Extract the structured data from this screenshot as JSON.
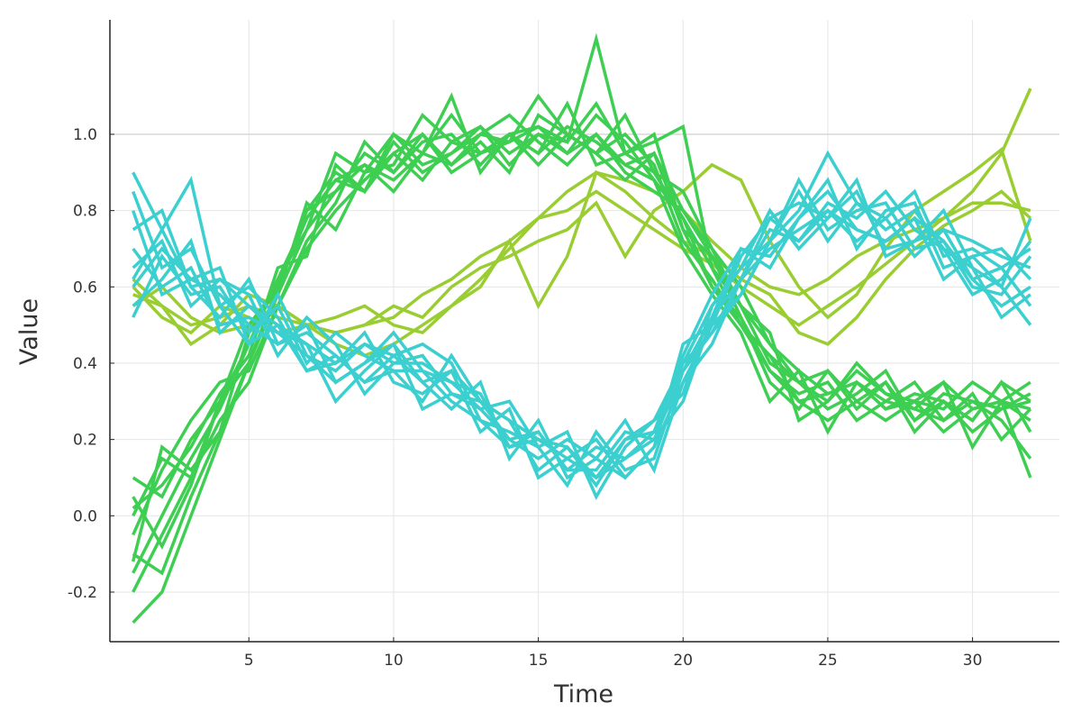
{
  "chart_data": {
    "type": "line",
    "title": "",
    "xlabel": "Time",
    "ylabel": "Value",
    "xlim": [
      0.2,
      33
    ],
    "ylim": [
      -0.33,
      1.3
    ],
    "x_ticks": [
      5,
      10,
      15,
      20,
      25,
      30
    ],
    "y_ticks": [
      -0.2,
      0.0,
      0.2,
      0.4,
      0.6,
      0.8,
      1.0
    ],
    "x_tick_labels": [
      "5",
      "10",
      "15",
      "20",
      "25",
      "30"
    ],
    "y_tick_labels": [
      "-0.2",
      "0.0",
      "0.2",
      "0.4",
      "0.6",
      "0.8",
      "1.0"
    ],
    "grid": true,
    "legend": "none",
    "x": [
      1,
      2,
      3,
      4,
      5,
      6,
      7,
      8,
      9,
      10,
      11,
      12,
      13,
      14,
      15,
      16,
      17,
      18,
      19,
      20,
      21,
      22,
      23,
      24,
      25,
      26,
      27,
      28,
      29,
      30,
      31,
      32
    ],
    "series": [
      {
        "color": "#9acd32",
        "values": [
          0.62,
          0.55,
          0.5,
          0.52,
          0.55,
          0.52,
          0.5,
          0.48,
          0.5,
          0.52,
          0.58,
          0.62,
          0.68,
          0.72,
          0.78,
          0.8,
          0.85,
          0.8,
          0.75,
          0.7,
          0.66,
          0.6,
          0.55,
          0.5,
          0.55,
          0.6,
          0.66,
          0.72,
          0.78,
          0.85,
          0.95,
          1.12
        ]
      },
      {
        "color": "#9acd32",
        "values": [
          0.58,
          0.55,
          0.45,
          0.5,
          0.58,
          0.55,
          0.5,
          0.45,
          0.42,
          0.45,
          0.5,
          0.55,
          0.62,
          0.7,
          0.78,
          0.85,
          0.9,
          0.88,
          0.85,
          0.8,
          0.72,
          0.65,
          0.6,
          0.58,
          0.62,
          0.68,
          0.72,
          0.75,
          0.78,
          0.82,
          0.82,
          0.8
        ]
      },
      {
        "color": "#9acd32",
        "values": [
          0.55,
          0.6,
          0.52,
          0.48,
          0.5,
          0.55,
          0.5,
          0.48,
          0.5,
          0.55,
          0.52,
          0.6,
          0.65,
          0.68,
          0.72,
          0.75,
          0.82,
          0.68,
          0.8,
          0.85,
          0.92,
          0.88,
          0.72,
          0.6,
          0.52,
          0.58,
          0.7,
          0.8,
          0.85,
          0.9,
          0.96,
          0.72
        ]
      },
      {
        "color": "#9acd32",
        "values": [
          0.6,
          0.52,
          0.48,
          0.55,
          0.52,
          0.48,
          0.5,
          0.52,
          0.55,
          0.5,
          0.48,
          0.55,
          0.6,
          0.72,
          0.55,
          0.68,
          0.9,
          0.85,
          0.78,
          0.72,
          0.68,
          0.62,
          0.58,
          0.48,
          0.45,
          0.52,
          0.62,
          0.7,
          0.76,
          0.8,
          0.85,
          0.78
        ]
      },
      {
        "color": "#3ecf52",
        "values": [
          -0.28,
          -0.2,
          0.0,
          0.2,
          0.4,
          0.6,
          0.8,
          0.9,
          0.85,
          1.0,
          0.95,
          1.05,
          0.95,
          1.0,
          1.02,
          0.98,
          1.25,
          0.95,
          0.9,
          0.85,
          0.7,
          0.55,
          0.4,
          0.35,
          0.3,
          0.38,
          0.32,
          0.3,
          0.35,
          0.28,
          0.3,
          0.1
        ]
      },
      {
        "color": "#3ecf52",
        "values": [
          -0.2,
          -0.05,
          0.1,
          0.3,
          0.45,
          0.62,
          0.75,
          0.85,
          0.95,
          0.9,
          1.0,
          0.92,
          0.98,
          0.9,
          1.05,
          1.0,
          0.95,
          0.88,
          0.95,
          0.8,
          0.68,
          0.55,
          0.45,
          0.38,
          0.32,
          0.35,
          0.3,
          0.28,
          0.25,
          0.3,
          0.28,
          0.32
        ]
      },
      {
        "color": "#3ecf52",
        "values": [
          0.0,
          0.15,
          0.1,
          0.25,
          0.35,
          0.55,
          0.7,
          0.8,
          0.88,
          0.95,
          0.88,
          0.98,
          1.02,
          0.95,
          1.0,
          0.95,
          1.05,
          0.98,
          0.88,
          0.78,
          0.65,
          0.5,
          0.42,
          0.3,
          0.25,
          0.3,
          0.35,
          0.22,
          0.3,
          0.25,
          0.35,
          0.22
        ]
      },
      {
        "color": "#3ecf52",
        "values": [
          0.1,
          0.05,
          0.2,
          0.3,
          0.5,
          0.6,
          0.78,
          0.88,
          0.92,
          0.85,
          0.95,
          1.1,
          0.9,
          1.0,
          0.95,
          1.08,
          0.92,
          0.95,
          1.0,
          0.75,
          0.6,
          0.52,
          0.35,
          0.28,
          0.38,
          0.3,
          0.25,
          0.3,
          0.22,
          0.28,
          0.3,
          0.35
        ]
      },
      {
        "color": "#3ecf52",
        "values": [
          -0.1,
          -0.15,
          0.05,
          0.22,
          0.4,
          0.58,
          0.82,
          0.75,
          0.9,
          1.0,
          0.92,
          0.95,
          1.0,
          1.05,
          0.98,
          0.92,
          1.0,
          0.9,
          0.85,
          0.8,
          0.7,
          0.6,
          0.45,
          0.35,
          0.28,
          0.32,
          0.38,
          0.25,
          0.3,
          0.22,
          0.28,
          0.3
        ]
      },
      {
        "color": "#3ecf52",
        "values": [
          0.02,
          0.08,
          0.18,
          0.32,
          0.42,
          0.65,
          0.68,
          0.92,
          0.85,
          0.95,
          1.0,
          0.9,
          0.95,
          0.98,
          1.1,
          1.0,
          0.95,
          1.0,
          0.92,
          0.72,
          0.62,
          0.5,
          0.38,
          0.32,
          0.35,
          0.25,
          0.3,
          0.35,
          0.25,
          0.32,
          0.2,
          0.28
        ]
      },
      {
        "color": "#3ecf52",
        "values": [
          -0.05,
          0.12,
          0.25,
          0.35,
          0.38,
          0.55,
          0.72,
          0.82,
          0.98,
          0.9,
          0.98,
          1.0,
          0.92,
          1.0,
          0.95,
          1.02,
          0.98,
          0.92,
          0.88,
          0.7,
          0.58,
          0.48,
          0.3,
          0.38,
          0.22,
          0.35,
          0.28,
          0.32,
          0.3,
          0.25,
          0.35,
          0.3
        ]
      },
      {
        "color": "#3ecf52",
        "values": [
          -0.15,
          0.0,
          0.15,
          0.28,
          0.45,
          0.62,
          0.78,
          0.88,
          0.85,
          0.98,
          0.9,
          0.95,
          1.02,
          0.92,
          1.0,
          0.98,
          1.08,
          0.95,
          0.98,
          1.02,
          0.65,
          0.55,
          0.48,
          0.25,
          0.3,
          0.4,
          0.32,
          0.28,
          0.35,
          0.18,
          0.3,
          0.25
        ]
      },
      {
        "color": "#3ecf52",
        "values": [
          0.05,
          -0.08,
          0.08,
          0.3,
          0.4,
          0.58,
          0.75,
          0.95,
          0.9,
          0.92,
          1.05,
          0.98,
          0.95,
          1.0,
          0.92,
          1.0,
          0.95,
          1.05,
          0.9,
          0.78,
          0.6,
          0.5,
          0.42,
          0.35,
          0.38,
          0.28,
          0.35,
          0.25,
          0.32,
          0.3,
          0.25,
          0.15
        ]
      },
      {
        "color": "#3ecf52",
        "values": [
          -0.12,
          0.18,
          0.12,
          0.22,
          0.48,
          0.6,
          0.8,
          0.85,
          0.92,
          0.88,
          0.95,
          0.92,
          1.0,
          0.98,
          1.02,
          0.95,
          1.0,
          0.92,
          0.95,
          0.75,
          0.68,
          0.52,
          0.38,
          0.3,
          0.32,
          0.35,
          0.28,
          0.3,
          0.28,
          0.35,
          0.3,
          0.28
        ]
      },
      {
        "color": "#3ccfcf",
        "values": [
          0.9,
          0.75,
          0.88,
          0.55,
          0.45,
          0.5,
          0.45,
          0.4,
          0.45,
          0.42,
          0.35,
          0.38,
          0.3,
          0.25,
          0.2,
          0.15,
          0.1,
          0.2,
          0.25,
          0.4,
          0.55,
          0.65,
          0.72,
          0.8,
          0.95,
          0.82,
          0.75,
          0.8,
          0.7,
          0.65,
          0.6,
          0.78
        ]
      },
      {
        "color": "#3ccfcf",
        "values": [
          0.75,
          0.8,
          0.6,
          0.62,
          0.55,
          0.48,
          0.42,
          0.38,
          0.45,
          0.4,
          0.42,
          0.32,
          0.28,
          0.2,
          0.15,
          0.2,
          0.15,
          0.1,
          0.18,
          0.35,
          0.5,
          0.68,
          0.78,
          0.82,
          0.78,
          0.85,
          0.7,
          0.72,
          0.75,
          0.62,
          0.55,
          0.6
        ]
      },
      {
        "color": "#3ccfcf",
        "values": [
          0.6,
          0.7,
          0.62,
          0.58,
          0.5,
          0.45,
          0.5,
          0.35,
          0.4,
          0.48,
          0.38,
          0.35,
          0.32,
          0.18,
          0.22,
          0.12,
          0.18,
          0.15,
          0.2,
          0.3,
          0.52,
          0.62,
          0.7,
          0.75,
          0.8,
          0.72,
          0.78,
          0.85,
          0.68,
          0.7,
          0.65,
          0.55
        ]
      },
      {
        "color": "#3ccfcf",
        "values": [
          0.85,
          0.65,
          0.7,
          0.55,
          0.6,
          0.52,
          0.38,
          0.42,
          0.35,
          0.42,
          0.45,
          0.4,
          0.25,
          0.22,
          0.18,
          0.08,
          0.22,
          0.12,
          0.15,
          0.38,
          0.48,
          0.58,
          0.72,
          0.88,
          0.75,
          0.8,
          0.82,
          0.7,
          0.72,
          0.6,
          0.58,
          0.68
        ]
      },
      {
        "color": "#3ccfcf",
        "values": [
          0.52,
          0.68,
          0.58,
          0.6,
          0.48,
          0.55,
          0.4,
          0.48,
          0.42,
          0.38,
          0.3,
          0.42,
          0.3,
          0.25,
          0.12,
          0.18,
          0.08,
          0.2,
          0.22,
          0.42,
          0.58,
          0.7,
          0.68,
          0.78,
          0.85,
          0.75,
          0.72,
          0.78,
          0.62,
          0.68,
          0.7,
          0.62
        ]
      },
      {
        "color": "#3ccfcf",
        "values": [
          0.7,
          0.6,
          0.65,
          0.5,
          0.52,
          0.48,
          0.45,
          0.3,
          0.38,
          0.45,
          0.35,
          0.28,
          0.35,
          0.15,
          0.25,
          0.1,
          0.15,
          0.25,
          0.12,
          0.35,
          0.45,
          0.62,
          0.75,
          0.72,
          0.82,
          0.78,
          0.85,
          0.75,
          0.7,
          0.58,
          0.62,
          0.72
        ]
      },
      {
        "color": "#3ccfcf",
        "values": [
          0.65,
          0.72,
          0.55,
          0.62,
          0.58,
          0.42,
          0.52,
          0.45,
          0.32,
          0.4,
          0.4,
          0.35,
          0.28,
          0.3,
          0.18,
          0.22,
          0.05,
          0.18,
          0.25,
          0.32,
          0.55,
          0.65,
          0.8,
          0.7,
          0.78,
          0.88,
          0.68,
          0.72,
          0.8,
          0.65,
          0.52,
          0.58
        ]
      },
      {
        "color": "#3ccfcf",
        "values": [
          0.55,
          0.62,
          0.72,
          0.48,
          0.55,
          0.5,
          0.38,
          0.4,
          0.48,
          0.35,
          0.32,
          0.38,
          0.22,
          0.28,
          0.1,
          0.15,
          0.2,
          0.1,
          0.18,
          0.45,
          0.5,
          0.58,
          0.72,
          0.85,
          0.72,
          0.82,
          0.78,
          0.68,
          0.75,
          0.72,
          0.68,
          0.65
        ]
      },
      {
        "color": "#3ccfcf",
        "values": [
          0.8,
          0.58,
          0.62,
          0.65,
          0.45,
          0.58,
          0.42,
          0.35,
          0.4,
          0.45,
          0.28,
          0.32,
          0.3,
          0.2,
          0.22,
          0.12,
          0.12,
          0.22,
          0.2,
          0.38,
          0.52,
          0.7,
          0.65,
          0.78,
          0.88,
          0.7,
          0.8,
          0.82,
          0.65,
          0.68,
          0.6,
          0.5
        ]
      },
      {
        "color": "#3ccfcf",
        "values": [
          0.62,
          0.75,
          0.6,
          0.52,
          0.62,
          0.45,
          0.48,
          0.42,
          0.35,
          0.38,
          0.38,
          0.3,
          0.25,
          0.18,
          0.2,
          0.18,
          0.1,
          0.15,
          0.22,
          0.4,
          0.48,
          0.62,
          0.78,
          0.72,
          0.8,
          0.75,
          0.72,
          0.78,
          0.72,
          0.62,
          0.65,
          0.7
        ]
      }
    ]
  }
}
